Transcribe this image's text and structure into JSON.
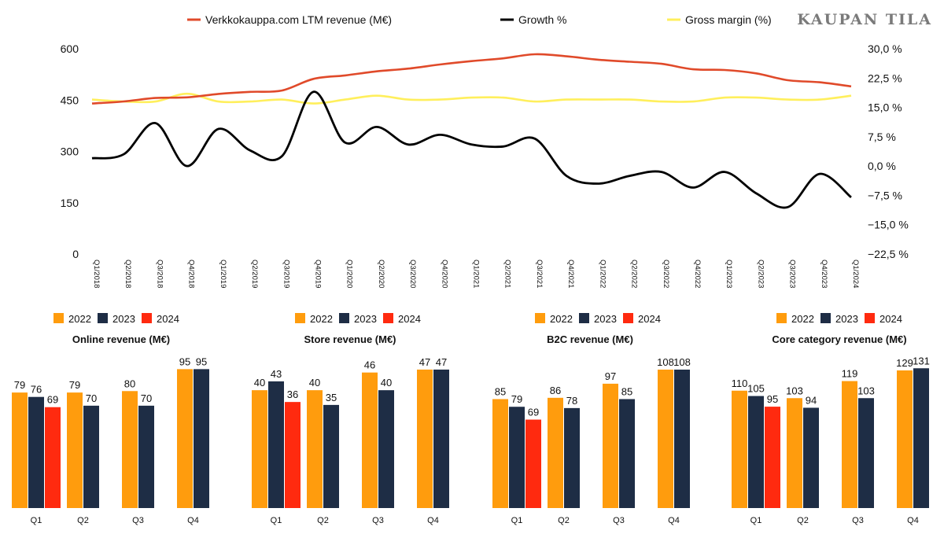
{
  "brand": "KAUPAN TILA",
  "colors": {
    "revenue": "#e04a2a",
    "growth": "#000000",
    "margin": "#ffef5c",
    "y2022": "#ff9c0d",
    "y2023": "#1e2d45",
    "y2024": "#ff2a0f"
  },
  "chart_data": [
    {
      "type": "line",
      "legend": [
        "Verkkokauppa.com LTM revenue (M€)",
        "Growth %",
        "Gross margin (%)"
      ],
      "x": [
        "Q1/2018",
        "Q2/2018",
        "Q3/2018",
        "Q4/2018",
        "Q1/2019",
        "Q2/2019",
        "Q3/2019",
        "Q4/2019",
        "Q1/2020",
        "Q2/2020",
        "Q3/2020",
        "Q4/2020",
        "Q1/2021",
        "Q2/2021",
        "Q3/2021",
        "Q4/2021",
        "Q1/2022",
        "Q2/2022",
        "Q3/2022",
        "Q4/2022",
        "Q1/2023",
        "Q2/2023",
        "Q3/2023",
        "Q4/2023",
        "Q1/2024"
      ],
      "y_left": {
        "ticks": [
          "600",
          "450",
          "300",
          "150",
          "0"
        ],
        "range": [
          0,
          600
        ]
      },
      "y_right": {
        "ticks": [
          "30,0 %",
          "22,5 %",
          "15,0 %",
          "7,5 %",
          "0,0 %",
          "−7,5 %",
          "−15,0 %",
          "−22,5 %"
        ],
        "range": [
          -22.5,
          30
        ]
      },
      "series": [
        {
          "name": "Verkkokauppa.com LTM revenue (M€)",
          "axis": "left",
          "values": [
            440,
            446,
            456,
            458,
            468,
            474,
            478,
            512,
            522,
            534,
            542,
            554,
            564,
            572,
            584,
            578,
            568,
            562,
            556,
            540,
            538,
            528,
            508,
            502,
            490
          ]
        },
        {
          "name": "Growth %",
          "axis": "right",
          "values": [
            2,
            3,
            11,
            0,
            9.5,
            4,
            2.5,
            19,
            6,
            10,
            5.5,
            8,
            5.5,
            5,
            7,
            -2.5,
            -4.5,
            -2.5,
            -1.5,
            -5.5,
            -1.5,
            -7,
            -10.5,
            -2,
            -8
          ]
        },
        {
          "name": "Gross margin (%)",
          "axis": "right",
          "values": [
            17,
            16.5,
            16.5,
            18.5,
            16.5,
            16.5,
            17,
            16,
            17,
            18,
            17,
            17,
            17.5,
            17.5,
            16.5,
            17,
            17,
            17,
            16.5,
            16.5,
            17.5,
            17.5,
            17,
            17,
            18
          ]
        }
      ]
    },
    {
      "type": "bar",
      "title": "Online revenue (M€)",
      "legend": [
        "2022",
        "2023",
        "2024"
      ],
      "categories": [
        "Q1",
        "Q2",
        "Q3",
        "Q4"
      ],
      "ylim": [
        0,
        135
      ],
      "series": [
        {
          "name": "2022",
          "values": [
            79,
            79,
            80,
            95
          ]
        },
        {
          "name": "2023",
          "values": [
            76,
            70,
            70,
            95
          ]
        },
        {
          "name": "2024",
          "values": [
            69,
            null,
            null,
            null
          ]
        }
      ]
    },
    {
      "type": "bar",
      "title": "Store revenue (M€)",
      "legend": [
        "2022",
        "2023",
        "2024"
      ],
      "categories": [
        "Q1",
        "Q2",
        "Q3",
        "Q4"
      ],
      "ylim": [
        0,
        67
      ],
      "series": [
        {
          "name": "2022",
          "values": [
            40,
            40,
            46,
            47
          ]
        },
        {
          "name": "2023",
          "values": [
            43,
            35,
            40,
            47
          ]
        },
        {
          "name": "2024",
          "values": [
            36,
            null,
            null,
            null
          ]
        }
      ]
    },
    {
      "type": "bar",
      "title": "B2C revenue (M€)",
      "legend": [
        "2022",
        "2023",
        "2024"
      ],
      "categories": [
        "Q1",
        "Q2",
        "Q3",
        "Q4"
      ],
      "ylim": [
        0,
        154
      ],
      "series": [
        {
          "name": "2022",
          "values": [
            85,
            86,
            97,
            108
          ]
        },
        {
          "name": "2023",
          "values": [
            79,
            78,
            85,
            108
          ]
        },
        {
          "name": "2024",
          "values": [
            69,
            null,
            null,
            null
          ]
        }
      ]
    },
    {
      "type": "bar",
      "title": "Core category revenue (M€)",
      "legend": [
        "2022",
        "2023",
        "2024"
      ],
      "categories": [
        "Q1",
        "Q2",
        "Q3",
        "Q4"
      ],
      "ylim": [
        0,
        185
      ],
      "series": [
        {
          "name": "2022",
          "values": [
            110,
            103,
            119,
            129
          ]
        },
        {
          "name": "2023",
          "values": [
            105,
            94,
            103,
            131
          ]
        },
        {
          "name": "2024",
          "values": [
            95,
            null,
            null,
            null
          ]
        }
      ]
    }
  ]
}
